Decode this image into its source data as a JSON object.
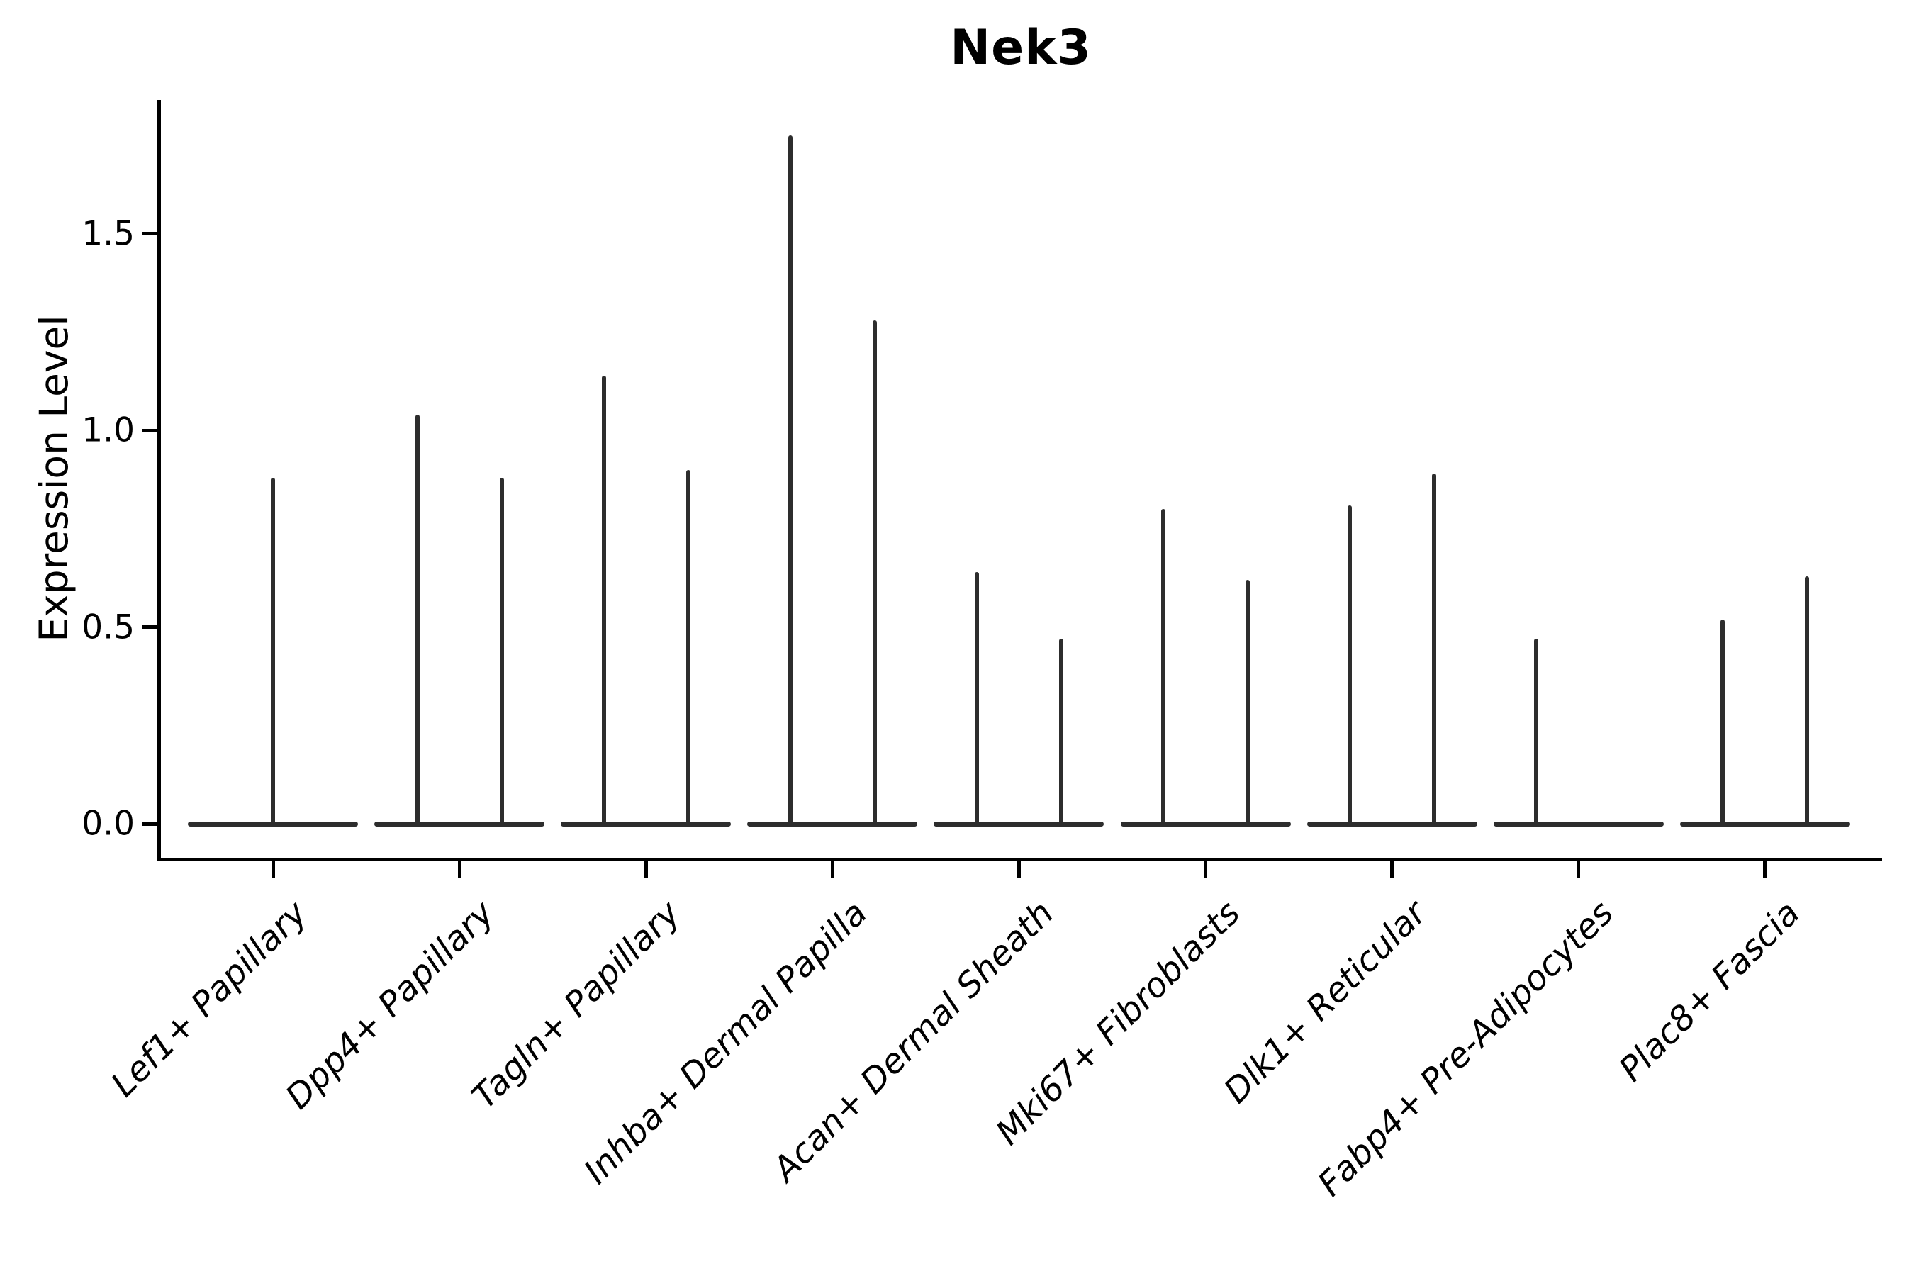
{
  "chart_data": {
    "type": "violin",
    "title": "Nek3",
    "ylabel": "Expression Level",
    "xlabel": "",
    "yticks": [
      {
        "label": "0.0",
        "value": 0.0
      },
      {
        "label": "0.5",
        "value": 0.5
      },
      {
        "label": "1.0",
        "value": 1.0
      },
      {
        "label": "1.5",
        "value": 1.5
      }
    ],
    "ylim": [
      -0.087,
      1.841
    ],
    "grid": false,
    "legend": "none",
    "baseline_value": 0.0,
    "violins_per_category": 2,
    "categories": [
      "Lef1+ Papillary",
      "Dpp4+ Papillary",
      "Tagln+ Papillary",
      "Inhba+ Dermal Papilla",
      "Acan+ Dermal Sheath",
      "Mki67+ Fibroblasts",
      "Dlk1+ Reticular",
      "Fabp4+ Pre-Adipocytes",
      "Plac8+ Fascia"
    ],
    "series": [
      {
        "category": "Lef1+ Papillary",
        "spikes": [
          {
            "slot": "center",
            "max": 0.88
          }
        ]
      },
      {
        "category": "Dpp4+ Papillary",
        "spikes": [
          {
            "slot": "left",
            "max": 1.04
          },
          {
            "slot": "right",
            "max": 0.88
          }
        ]
      },
      {
        "category": "Tagln+ Papillary",
        "spikes": [
          {
            "slot": "left",
            "max": 1.14
          },
          {
            "slot": "right",
            "max": 0.9
          }
        ]
      },
      {
        "category": "Inhba+ Dermal Papilla",
        "spikes": [
          {
            "slot": "left",
            "max": 1.75
          },
          {
            "slot": "right",
            "max": 1.28
          }
        ]
      },
      {
        "category": "Acan+ Dermal Sheath",
        "spikes": [
          {
            "slot": "left",
            "max": 0.64
          },
          {
            "slot": "right",
            "max": 0.47
          }
        ]
      },
      {
        "category": "Mki67+ Fibroblasts",
        "spikes": [
          {
            "slot": "left",
            "max": 0.8
          },
          {
            "slot": "right",
            "max": 0.62
          }
        ]
      },
      {
        "category": "Dlk1+ Reticular",
        "spikes": [
          {
            "slot": "left",
            "max": 0.81
          },
          {
            "slot": "right",
            "max": 0.89
          }
        ]
      },
      {
        "category": "Fabp4+ Pre-Adipocytes",
        "spikes": [
          {
            "slot": "left",
            "max": 0.47
          }
        ]
      },
      {
        "category": "Plac8+ Fascia",
        "spikes": [
          {
            "slot": "left",
            "max": 0.52
          },
          {
            "slot": "right",
            "max": 0.63
          }
        ]
      }
    ],
    "colors": {
      "violin_line": "#2d2d2d",
      "axis": "#000000",
      "text": "#000000",
      "background": "#ffffff"
    }
  }
}
